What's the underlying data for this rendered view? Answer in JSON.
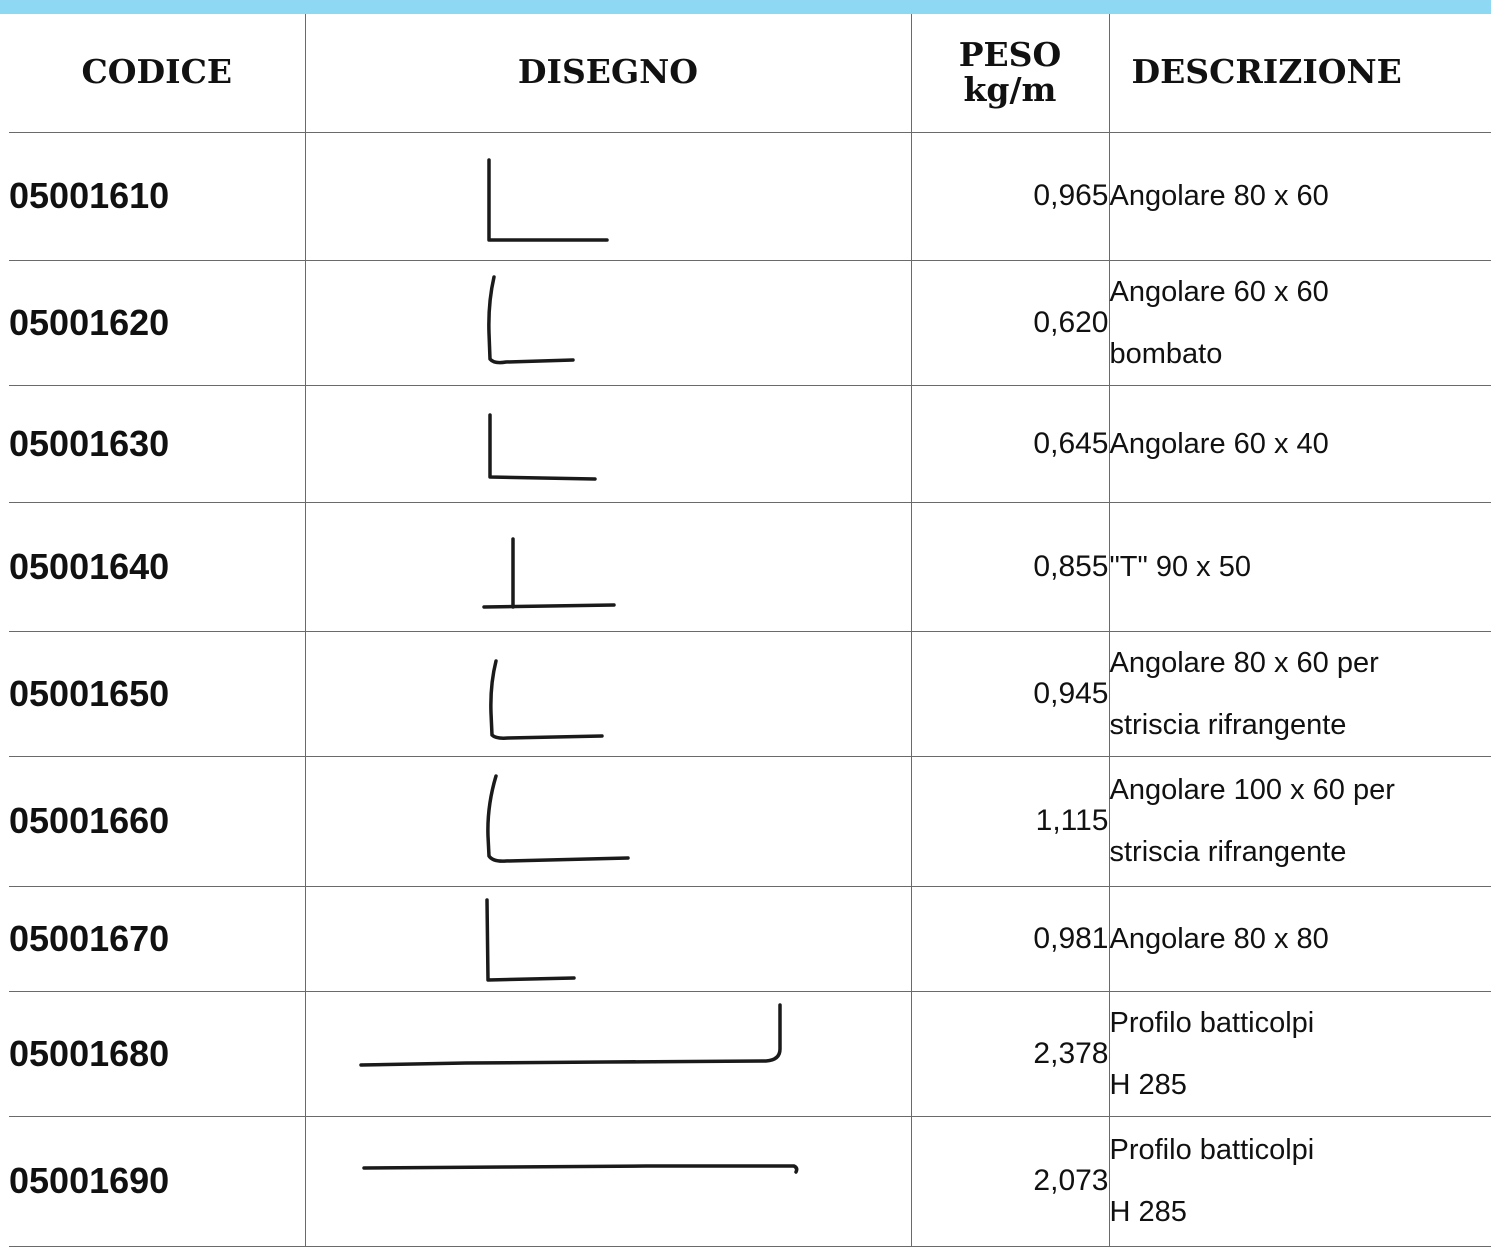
{
  "header": {
    "codice": "CODICE",
    "disegno": "DISEGNO",
    "peso_line1": "PESO",
    "peso_line2": "kg/m",
    "descrizione": "DESCRIZIONE"
  },
  "rows": [
    {
      "code": "05001610",
      "weight": "0,965",
      "desc1": "Angolare  80 x 60",
      "desc2": "",
      "shape": "L-shape-icon"
    },
    {
      "code": "05001620",
      "weight": "0,620",
      "desc1": "Angolare  60 x 60",
      "desc2": "bombato",
      "shape": "L-shape-curved-icon"
    },
    {
      "code": "05001630",
      "weight": "0,645",
      "desc1": "Angolare 60 x 40",
      "desc2": "",
      "shape": "L-shape-icon"
    },
    {
      "code": "05001640",
      "weight": "0,855",
      "desc1": "\"T\" 90 x 50",
      "desc2": "",
      "shape": "T-shape-icon"
    },
    {
      "code": "05001650",
      "weight": "0,945",
      "desc1": "Angolare  80 x 60 per",
      "desc2": "striscia rifrangente",
      "shape": "L-shape-curved-icon"
    },
    {
      "code": "05001660",
      "weight": "1,115",
      "desc1": "Angolare  100 x 60 per",
      "desc2": "striscia rifrangente",
      "shape": "L-shape-curved-icon"
    },
    {
      "code": "05001670",
      "weight": "0,981",
      "desc1": "Angolare  80 x 80",
      "desc2": "",
      "shape": "L-shape-icon"
    },
    {
      "code": "05001680",
      "weight": "2,378",
      "desc1": "Profilo batticolpi",
      "desc2": "H 285",
      "shape": "profile-with-lip-icon"
    },
    {
      "code": "05001690",
      "weight": "2,073",
      "desc1": "Profilo batticolpi",
      "desc2": "H 285",
      "shape": "flat-profile-icon"
    }
  ]
}
